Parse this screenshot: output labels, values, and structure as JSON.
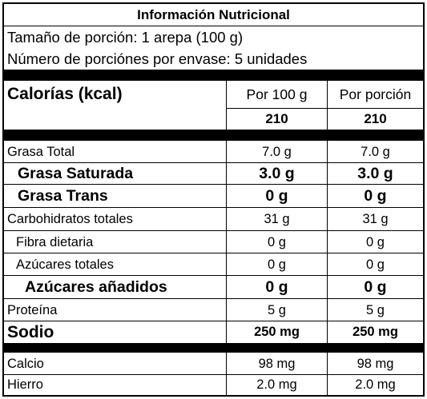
{
  "title": "Información Nutricional",
  "serving_size": "Tamaño de porción: 1 arepa (100 g)",
  "servings_per_container": "Número de porciónes por envase: 5 unidades",
  "calories": {
    "label": "Calorías (kcal)",
    "col_per_100g": "Por 100 g",
    "col_per_serving": "Por porción",
    "value_per_100g": "210",
    "value_per_serving": "210"
  },
  "nutrients": [
    {
      "label": "Grasa Total",
      "per_100g": "7.0 g",
      "per_serving": "7.0 g"
    },
    {
      "label": "Grasa Saturada",
      "per_100g": "3.0 g",
      "per_serving": "3.0 g"
    },
    {
      "label": "Grasa Trans",
      "per_100g": "0 g",
      "per_serving": "0 g"
    },
    {
      "label": "Carbohidratos totales",
      "per_100g": "31 g",
      "per_serving": "31 g"
    },
    {
      "label": "Fibra dietaria",
      "per_100g": "0 g",
      "per_serving": "0 g"
    },
    {
      "label": "Azúcares totales",
      "per_100g": "0 g",
      "per_serving": "0 g"
    },
    {
      "label": "Azúcares añadidos",
      "per_100g": "0 g",
      "per_serving": "0 g"
    },
    {
      "label": "Proteína",
      "per_100g": "5 g",
      "per_serving": "5 g"
    },
    {
      "label": "Sodio",
      "per_100g": "250 mg",
      "per_serving": "250 mg"
    }
  ],
  "minerals": [
    {
      "label": "Calcio",
      "per_100g": "98 mg",
      "per_serving": "98 mg"
    },
    {
      "label": "Hierro",
      "per_100g": "2.0 mg",
      "per_serving": "2.0 mg"
    }
  ]
}
